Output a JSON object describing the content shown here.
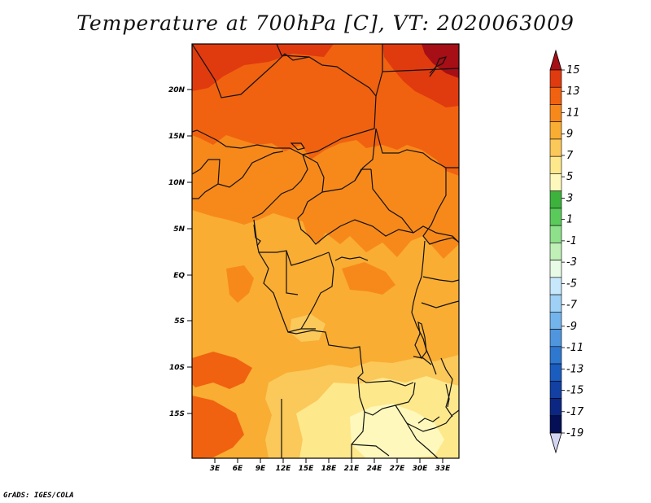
{
  "title": "Temperature at 700hPa [C], VT: 2020063009",
  "credit": "GrADS: IGES/COLA",
  "map": {
    "lat_labels": [
      "20N",
      "15N",
      "10N",
      "5N",
      "EQ",
      "5S",
      "10S",
      "15S"
    ],
    "lon_labels": [
      "3E",
      "6E",
      "9E",
      "12E",
      "15E",
      "18E",
      "21E",
      "24E",
      "27E",
      "30E",
      "33E"
    ]
  },
  "colorbar": {
    "labels": [
      "15",
      "13",
      "11",
      "9",
      "7",
      "5",
      "3",
      "1",
      "-1",
      "-3",
      "-5",
      "-7",
      "-9",
      "-11",
      "-13",
      "-15",
      "-17",
      "-19"
    ],
    "colors": [
      "#a50f15",
      "#e03a0f",
      "#f0620f",
      "#f7891a",
      "#f9ad33",
      "#fbc85a",
      "#fee88c",
      "#fff8bc",
      "#3db33d",
      "#5acb5a",
      "#8ee18a",
      "#c0f0b8",
      "#e8fbe6",
      "#c7e7fb",
      "#9fd0f5",
      "#74b4ec",
      "#4f96df",
      "#2e78d0",
      "#1b5cbf",
      "#1240a3",
      "#0c2683",
      "#050f55",
      "#d2d6f2"
    ]
  }
}
